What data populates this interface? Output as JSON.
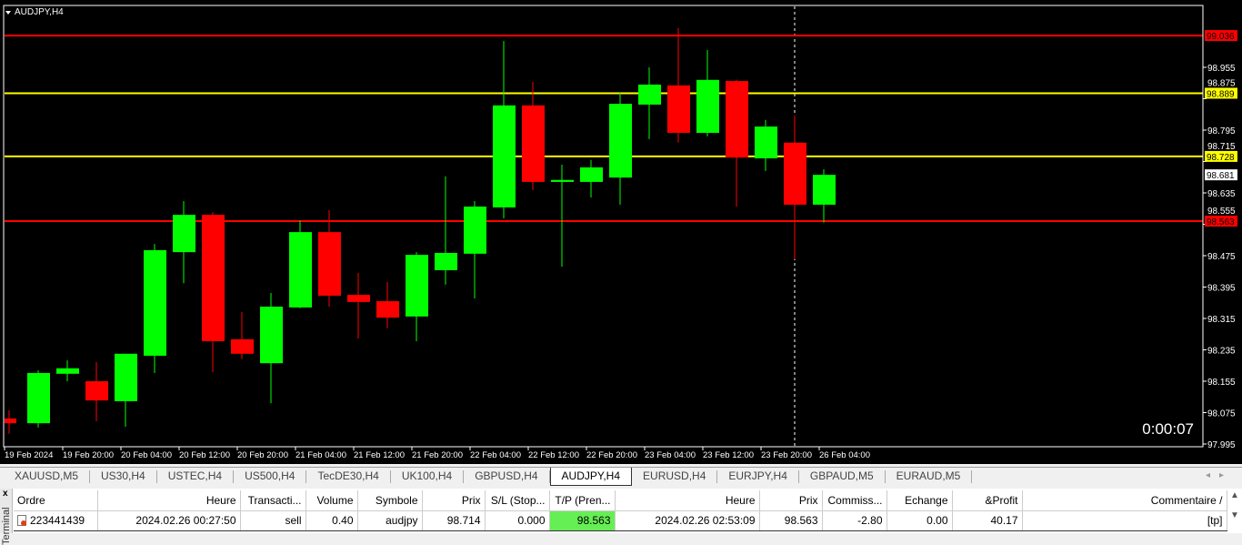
{
  "chart_header": {
    "symbol_label": "AUDJPY,H4",
    "timer": "0:00:07"
  },
  "chart_data": {
    "type": "candlestick",
    "symbol": "AUDJPY",
    "timeframe": "H4",
    "ylim": [
      97.995,
      99.07
    ],
    "y_ticks": [
      "98.955",
      "98.875",
      "98.795",
      "98.715",
      "98.635",
      "98.555",
      "98.475",
      "98.395",
      "98.315",
      "98.235",
      "98.155",
      "98.075",
      "97.995"
    ],
    "x_ticks": [
      "19 Feb 2024",
      "19 Feb 20:00",
      "20 Feb 04:00",
      "20 Feb 12:00",
      "20 Feb 20:00",
      "21 Feb 04:00",
      "21 Feb 12:00",
      "21 Feb 20:00",
      "22 Feb 04:00",
      "22 Feb 12:00",
      "22 Feb 20:00",
      "23 Feb 04:00",
      "23 Feb 12:00",
      "23 Feb 20:00",
      "26 Feb 04:00"
    ],
    "candles": [
      [
        98.06,
        98.081,
        98.021,
        98.048
      ],
      [
        98.048,
        98.183,
        98.037,
        98.176
      ],
      [
        98.174,
        98.208,
        98.155,
        98.188
      ],
      [
        98.155,
        98.204,
        98.053,
        98.106
      ],
      [
        98.104,
        98.225,
        98.039,
        98.225
      ],
      [
        98.22,
        98.505,
        98.176,
        98.489
      ],
      [
        98.484,
        98.614,
        98.405,
        98.579
      ],
      [
        98.579,
        98.586,
        98.178,
        98.257
      ],
      [
        98.262,
        98.331,
        98.211,
        98.225
      ],
      [
        98.201,
        98.38,
        98.099,
        98.345
      ],
      [
        98.343,
        98.565,
        98.341,
        98.535
      ],
      [
        98.535,
        98.591,
        98.345,
        98.373
      ],
      [
        98.375,
        98.431,
        98.264,
        98.357
      ],
      [
        98.359,
        98.408,
        98.29,
        98.317
      ],
      [
        98.32,
        98.484,
        98.257,
        98.477
      ],
      [
        98.438,
        98.677,
        98.401,
        98.482
      ],
      [
        98.48,
        98.614,
        98.366,
        98.6
      ],
      [
        98.598,
        99.022,
        98.57,
        98.858
      ],
      [
        98.858,
        98.918,
        98.642,
        98.663
      ],
      [
        98.663,
        98.707,
        98.447,
        98.668
      ],
      [
        98.663,
        98.719,
        98.623,
        98.7
      ],
      [
        98.674,
        98.89,
        98.605,
        98.862
      ],
      [
        98.86,
        98.955,
        98.772,
        98.911
      ],
      [
        98.909,
        99.055,
        98.763,
        98.788
      ],
      [
        98.788,
        98.999,
        98.779,
        98.923
      ],
      [
        98.92,
        98.923,
        98.6,
        98.725
      ],
      [
        98.723,
        98.821,
        98.691,
        98.804
      ],
      [
        98.763,
        98.832,
        98.466,
        98.605
      ],
      [
        98.605,
        98.695,
        98.559,
        98.681
      ]
    ],
    "hlines": [
      {
        "price": "99.036",
        "color": "#ff0000"
      },
      {
        "price": "98.889",
        "color": "#ffff00"
      },
      {
        "price": "98.728",
        "color": "#ffff00"
      },
      {
        "price": "98.563",
        "color": "#ff0000"
      }
    ],
    "bid": "98.681",
    "period_separator_index": 27,
    "colors": {
      "bull": "#00ff00",
      "bear": "#ff0000",
      "background": "#000000",
      "axis": "#ffffff"
    }
  },
  "tabs": [
    "XAUUSD,M5",
    "US30,H4",
    "USTEC,H4",
    "US500,H4",
    "TecDE30,H4",
    "UK100,H4",
    "GBPUSD,H4",
    "AUDJPY,H4",
    "EURUSD,H4",
    "EURJPY,H4",
    "GBPAUD,M5",
    "EURAUD,M5"
  ],
  "active_tab": "AUDJPY,H4",
  "terminal": {
    "side_label": "Terminal",
    "close": "x",
    "columns": [
      "Ordre",
      "Heure",
      "Transacti...",
      "Volume",
      "Symbole",
      "Prix",
      "S/L (Stop...",
      "T/P (Pren...",
      "Heure",
      "Prix",
      "Commiss...",
      "Echange",
      "&Profit",
      "Commentaire  /"
    ],
    "rows": [
      [
        "223441439",
        "2024.02.26 00:27:50",
        "sell",
        "0.40",
        "audjpy",
        "98.714",
        "0.000",
        "98.563",
        "2024.02.26 02:53:09",
        "98.563",
        "-2.80",
        "0.00",
        "40.17",
        "[tp]"
      ]
    ]
  }
}
